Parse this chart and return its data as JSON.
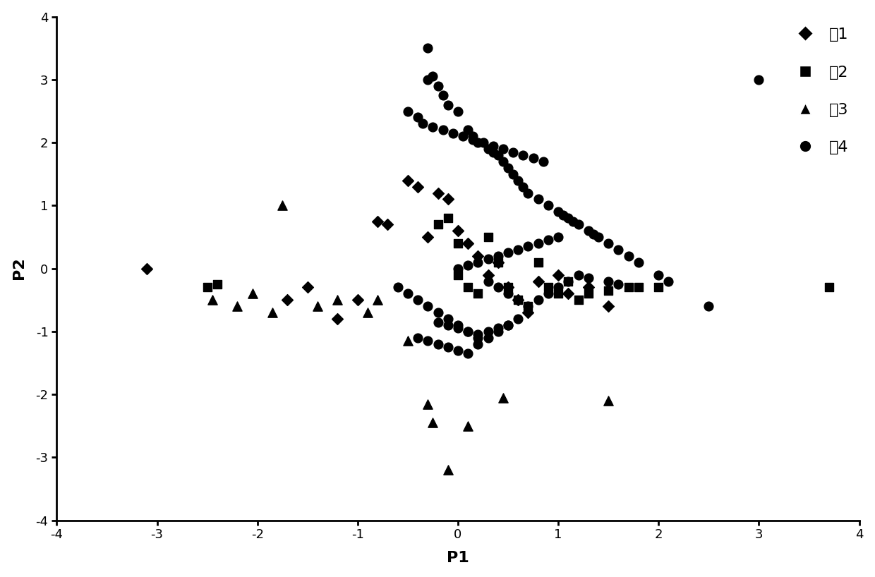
{
  "xlabel": "P1",
  "ylabel": "P2",
  "xlim": [
    -4,
    4
  ],
  "ylim": [
    -4,
    4
  ],
  "xticks": [
    -4,
    -3,
    -2,
    -1,
    0,
    1,
    2,
    3,
    4
  ],
  "yticks": [
    -4,
    -3,
    -2,
    -1,
    0,
    1,
    2,
    3,
    4
  ],
  "legend_labels": [
    "家1",
    "家2",
    "家3",
    "家4"
  ],
  "color": "#000000",
  "family1_x": [
    -3.1,
    -1.7,
    -1.5,
    -1.2,
    -1.0,
    -0.8,
    -0.7,
    -0.5,
    -0.4,
    -0.3,
    -0.2,
    -0.1,
    0.0,
    0.1,
    0.2,
    0.3,
    0.4,
    0.5,
    0.6,
    0.7,
    0.8,
    1.0,
    1.1,
    1.3,
    1.5
  ],
  "family1_y": [
    0.0,
    -0.5,
    -0.3,
    -0.8,
    -0.5,
    0.75,
    0.7,
    1.4,
    1.3,
    0.5,
    1.2,
    1.1,
    0.6,
    0.4,
    0.2,
    -0.1,
    0.1,
    -0.3,
    -0.5,
    -0.7,
    -0.2,
    -0.1,
    -0.4,
    -0.3,
    -0.6
  ],
  "family2_x": [
    -2.5,
    -2.4,
    -0.2,
    -0.1,
    0.0,
    0.0,
    0.1,
    0.2,
    0.3,
    0.4,
    0.5,
    0.6,
    0.7,
    0.8,
    0.9,
    1.0,
    1.1,
    1.2,
    1.3,
    1.5,
    1.7,
    1.8,
    2.0,
    3.7
  ],
  "family2_y": [
    -0.3,
    -0.25,
    0.7,
    0.8,
    -0.1,
    0.4,
    -0.3,
    -0.4,
    0.5,
    0.1,
    -0.3,
    -0.5,
    -0.6,
    0.1,
    -0.3,
    -0.4,
    -0.2,
    -0.5,
    -0.4,
    -0.35,
    -0.3,
    -0.3,
    -0.3,
    -0.3
  ],
  "family3_x": [
    -2.45,
    -2.2,
    -2.05,
    -1.85,
    -1.75,
    -1.4,
    -1.2,
    -0.9,
    -0.8,
    -0.5,
    -0.3,
    -0.25,
    -0.1,
    0.1,
    0.45,
    1.5
  ],
  "family3_y": [
    -0.5,
    -0.6,
    -0.4,
    -0.7,
    1.0,
    -0.6,
    -0.5,
    -0.7,
    -0.5,
    -1.15,
    -2.15,
    -2.45,
    -3.2,
    -2.5,
    -2.05,
    -2.1
  ],
  "family4_x": [
    -0.3,
    -0.25,
    -0.3,
    -0.2,
    -0.15,
    -0.1,
    0.0,
    0.1,
    0.15,
    0.2,
    0.3,
    0.35,
    0.4,
    0.45,
    0.5,
    0.55,
    0.6,
    0.65,
    -0.5,
    -0.4,
    -0.35,
    -0.25,
    -0.15,
    -0.05,
    0.05,
    0.15,
    0.25,
    0.35,
    0.45,
    0.55,
    0.65,
    0.75,
    0.85,
    0.7,
    0.8,
    0.9,
    1.0,
    1.05,
    1.1,
    1.15,
    1.2,
    1.3,
    1.35,
    1.4,
    1.5,
    1.6,
    1.7,
    1.8,
    2.0,
    2.1,
    2.5,
    3.0,
    -0.6,
    -0.5,
    -0.4,
    -0.3,
    -0.2,
    -0.1,
    0.0,
    0.1,
    0.2,
    0.3,
    0.4,
    0.5,
    0.6,
    0.7,
    0.8,
    0.9,
    1.0,
    1.1,
    1.2,
    1.3,
    1.5,
    1.6,
    0.0,
    0.1,
    0.2,
    0.3,
    0.4,
    0.5,
    0.6,
    0.7,
    0.8,
    0.9,
    1.0,
    -0.4,
    -0.3,
    -0.2,
    -0.1,
    0.0,
    0.1,
    0.2,
    0.3,
    0.4,
    0.5,
    0.6,
    -0.2,
    -0.1,
    0.0,
    0.1,
    0.2,
    0.3,
    0.4,
    0.5
  ],
  "family4_y": [
    3.5,
    3.05,
    3.0,
    2.9,
    2.75,
    2.6,
    2.5,
    2.2,
    2.1,
    2.0,
    1.9,
    1.85,
    1.8,
    1.7,
    1.6,
    1.5,
    1.4,
    1.3,
    2.5,
    2.4,
    2.3,
    2.25,
    2.2,
    2.15,
    2.1,
    2.05,
    2.0,
    1.95,
    1.9,
    1.85,
    1.8,
    1.75,
    1.7,
    1.2,
    1.1,
    1.0,
    0.9,
    0.85,
    0.8,
    0.75,
    0.7,
    0.6,
    0.55,
    0.5,
    0.4,
    0.3,
    0.2,
    0.1,
    -0.1,
    -0.2,
    -0.6,
    3.0,
    -0.3,
    -0.4,
    -0.5,
    -0.6,
    -0.7,
    -0.8,
    -0.9,
    -1.0,
    -1.1,
    -0.2,
    -0.3,
    -0.4,
    -0.5,
    -0.6,
    -0.5,
    -0.4,
    -0.3,
    -0.2,
    -0.1,
    -0.15,
    -0.2,
    -0.25,
    0.0,
    0.05,
    0.1,
    0.15,
    0.2,
    0.25,
    0.3,
    0.35,
    0.4,
    0.45,
    0.5,
    -1.1,
    -1.15,
    -1.2,
    -1.25,
    -1.3,
    -1.35,
    -1.2,
    -1.1,
    -1.0,
    -0.9,
    -0.8,
    -0.85,
    -0.9,
    -0.95,
    -1.0,
    -1.05,
    -1.0,
    -0.95,
    -0.9
  ]
}
